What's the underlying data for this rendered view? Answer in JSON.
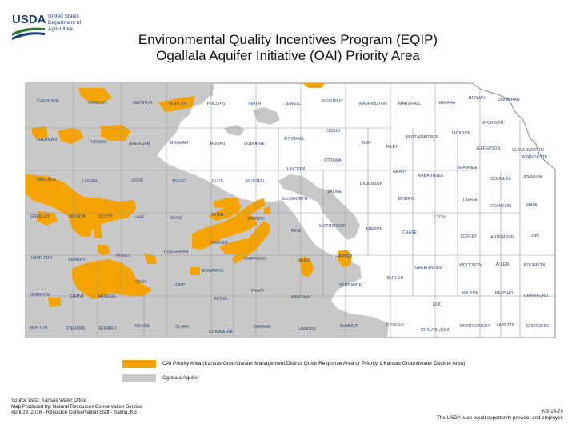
{
  "header": {
    "agency": [
      "United States",
      "Department of",
      "Agriculture"
    ],
    "logo_text": "USDA",
    "title_line1": "Environmental Quality Incentives Program (EQIP)",
    "title_line2": "Ogallala Aquifer Initiative (OAI) Priority Area"
  },
  "colors": {
    "priority": "#f5a300",
    "aquifer": "#c8c8c8",
    "county_border": "#9a9a9a",
    "county_label": "#39496e",
    "usda_green": "#2c7a3c",
    "usda_blue": "#1a3f7a"
  },
  "counties": [
    "CHEYENNE",
    "RAWLINS",
    "DECATUR",
    "NORTON",
    "PHILLIPS",
    "SMITH",
    "JEWELL",
    "REPUBLIC",
    "WASHINGTON",
    "MARSHALL",
    "NEMAHA",
    "BROWN",
    "DONIPHAN",
    "SHERMAN",
    "THOMAS",
    "SHERIDAN",
    "GRAHAM",
    "ROOKS",
    "OSBORNE",
    "MITCHELL",
    "CLOUD",
    "CLAY",
    "RILEY",
    "POTTAWATOMIE",
    "JACKSON",
    "ATCHISON",
    "JEFFERSON",
    "LEAVENWORTH",
    "WYANDOTTE",
    "OTTAWA",
    "LINCOLN",
    "WALLACE",
    "LOGAN",
    "GOVE",
    "TREGO",
    "ELLIS",
    "RUSSELL",
    "GEARY",
    "WABAUNSEE",
    "SHAWNEE",
    "DOUGLAS",
    "JOHNSON",
    "DICKINSON",
    "SALINE",
    "ELLSWORTH",
    "MORRIS",
    "OSAGE",
    "FRANKLIN",
    "MIAMI",
    "GREELEY",
    "WICHITA",
    "SCOTT",
    "LANE",
    "NESS",
    "RUSH",
    "BARTON",
    "LYON",
    "RICE",
    "MCPHERSON",
    "MARION",
    "CHASE",
    "COFFEY",
    "ANDERSON",
    "LINN",
    "HAMILTON",
    "KEARNY",
    "FINNEY",
    "HODGEMAN",
    "PAWNEE",
    "STAFFORD",
    "RENO",
    "HARVEY",
    "EDWARDS",
    "GRAY",
    "GREENWOOD",
    "WOODSON",
    "ALLEN",
    "BOURBON",
    "BUTLER",
    "SEDGWICK",
    "FORD",
    "KIOWA",
    "PRATT",
    "STANTON",
    "GRANT",
    "HASKELL",
    "KINGMAN",
    "WILSON",
    "NEOSHO",
    "CRAWFORD",
    "ELK",
    "MORTON",
    "STEVENS",
    "SEWARD",
    "MEADE",
    "CLARK",
    "COMANCHE",
    "BARBER",
    "HARPER",
    "SUMNER",
    "COWLEY",
    "CHAUTAUQUA",
    "MONTGOMERY",
    "LABETTE",
    "CHEROKEE"
  ],
  "legend": [
    {
      "label": "OAI Priority Area (Kansas Groundwater Management District Quick Response Area or Priority 1 Kansas Groundwater Decline Area)",
      "color": "#f5a300"
    },
    {
      "label": "Ogallala Aquifer",
      "color": "#c8c8c8"
    }
  ],
  "footer": {
    "left": [
      "Source Data: Kansas Water Office",
      "Map Produced by: Natural Resources Conservation Service",
      "April 29, 2016 - Resource Conservation Staff - Salina, KS"
    ],
    "right": [
      "KS-16-74",
      "The USDA is an equal opportunity provider and employer."
    ]
  }
}
